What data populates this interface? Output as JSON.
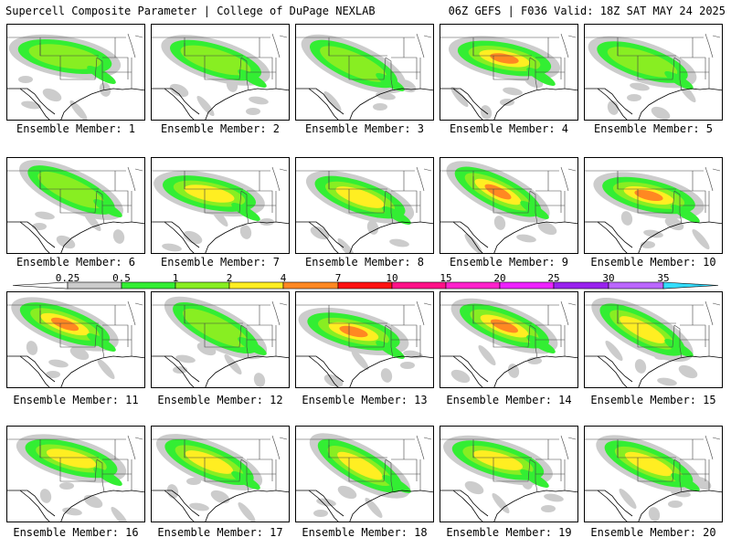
{
  "header": {
    "title_left": "Supercell Composite Parameter | College of DuPage NEXLAB",
    "title_right": "06Z GEFS | F036 Valid: 18Z SAT MAY 24 2025"
  },
  "caption_prefix": "Ensemble Member: ",
  "members": [
    {
      "number": "1",
      "peak_level": 3
    },
    {
      "number": "2",
      "peak_level": 3
    },
    {
      "number": "3",
      "peak_level": 3
    },
    {
      "number": "4",
      "peak_level": 5
    },
    {
      "number": "5",
      "peak_level": 3
    },
    {
      "number": "6",
      "peak_level": 3
    },
    {
      "number": "7",
      "peak_level": 4
    },
    {
      "number": "8",
      "peak_level": 4
    },
    {
      "number": "9",
      "peak_level": 5
    },
    {
      "number": "10",
      "peak_level": 5
    },
    {
      "number": "11",
      "peak_level": 5
    },
    {
      "number": "12",
      "peak_level": 3
    },
    {
      "number": "13",
      "peak_level": 5
    },
    {
      "number": "14",
      "peak_level": 5
    },
    {
      "number": "15",
      "peak_level": 4
    },
    {
      "number": "16",
      "peak_level": 4
    },
    {
      "number": "17",
      "peak_level": 4
    },
    {
      "number": "18",
      "peak_level": 4
    },
    {
      "number": "19",
      "peak_level": 4
    },
    {
      "number": "20",
      "peak_level": 4
    }
  ],
  "colorbar": {
    "labels": [
      "0.25",
      "0.5",
      "1",
      "2",
      "4",
      "7",
      "10",
      "15",
      "20",
      "25",
      "30",
      "35"
    ],
    "colors": [
      "#ffffff",
      "#cccccc",
      "#33ee33",
      "#88ee22",
      "#ffee22",
      "#ff8822",
      "#ff1111",
      "#ff1188",
      "#ff22cc",
      "#ee22ff",
      "#9922ee",
      "#bb66ff",
      "#33ddff"
    ]
  }
}
